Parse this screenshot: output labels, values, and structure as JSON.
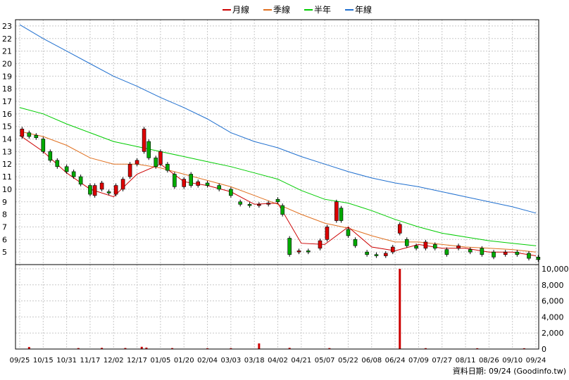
{
  "chart_data": {
    "type": "line",
    "legend": {
      "placement": "top-center",
      "items": [
        {
          "label": "月線",
          "color": "#cc0000"
        },
        {
          "label": "季線",
          "color": "#e07020"
        },
        {
          "label": "半年",
          "color": "#00cc00"
        },
        {
          "label": "年線",
          "color": "#1f6fcf"
        }
      ]
    },
    "price_axis": {
      "min": 4,
      "max": 23.5,
      "ticks": [
        "5",
        "6",
        "7",
        "8",
        "9",
        "10",
        "11",
        "12",
        "13",
        "14",
        "15",
        "16",
        "17",
        "18",
        "19",
        "20",
        "21",
        "22",
        "23"
      ]
    },
    "volume_axis": {
      "min": 0,
      "max": 10000,
      "ticks": [
        "0",
        "2,000",
        "4,000",
        "6,000",
        "8,000",
        "10,000"
      ]
    },
    "x_labels": [
      "09/25",
      "10/15",
      "10/31",
      "11/17",
      "12/02",
      "12/17",
      "01/05",
      "01/20",
      "02/04",
      "03/03",
      "03/18",
      "04/02",
      "04/21",
      "05/07",
      "05/22",
      "06/08",
      "06/24",
      "07/09",
      "07/27",
      "08/11",
      "08/26",
      "09/10",
      "09/24"
    ],
    "grid": true,
    "footer": "資料日期: 09/24  (Goodinfo.tw)",
    "series": [
      {
        "name": "年線",
        "color": "#1f6fcf",
        "x": [
          0,
          1,
          2,
          3,
          4,
          5,
          6,
          7,
          8,
          9,
          10,
          11,
          12,
          13,
          14,
          15,
          16,
          17,
          18,
          19,
          20,
          21,
          22
        ],
        "y": [
          23.1,
          22.0,
          21.0,
          20.0,
          19.0,
          18.2,
          17.3,
          16.5,
          15.6,
          14.5,
          13.8,
          13.3,
          12.6,
          12.0,
          11.4,
          10.9,
          10.5,
          10.2,
          9.8,
          9.4,
          9.0,
          8.6,
          8.1
        ]
      },
      {
        "name": "半年",
        "color": "#00cc00",
        "x": [
          0,
          1,
          2,
          3,
          4,
          5,
          6,
          7,
          8,
          9,
          10,
          11,
          12,
          13,
          14,
          15,
          16,
          17,
          18,
          19,
          20,
          21,
          22
        ],
        "y": [
          16.5,
          16.0,
          15.2,
          14.5,
          13.8,
          13.4,
          13.0,
          12.6,
          12.2,
          11.8,
          11.3,
          10.8,
          9.9,
          9.2,
          8.9,
          8.3,
          7.6,
          7.0,
          6.5,
          6.2,
          5.9,
          5.7,
          5.5
        ]
      },
      {
        "name": "季線",
        "color": "#e07020",
        "x": [
          0,
          1,
          2,
          3,
          4,
          5,
          6,
          7,
          8,
          9,
          10,
          11,
          12,
          13,
          14,
          15,
          16,
          17,
          18,
          19,
          20,
          21,
          22
        ],
        "y": [
          14.6,
          14.2,
          13.5,
          12.5,
          12.0,
          12.0,
          11.7,
          11.2,
          10.7,
          10.2,
          9.5,
          8.8,
          8.0,
          7.3,
          6.9,
          6.3,
          5.8,
          5.8,
          5.6,
          5.4,
          5.3,
          5.2,
          5.0
        ]
      },
      {
        "name": "月線",
        "color": "#cc0000",
        "x": [
          0,
          1,
          2,
          3,
          4,
          5,
          6,
          7,
          8,
          9,
          10,
          11,
          12,
          13,
          14,
          15,
          16,
          17,
          18,
          19,
          20,
          21,
          22
        ],
        "y": [
          14.3,
          13.0,
          11.3,
          10.0,
          9.4,
          11.2,
          12.0,
          10.6,
          10.3,
          9.8,
          8.8,
          8.9,
          5.7,
          5.6,
          7.0,
          5.4,
          5.1,
          5.6,
          5.3,
          5.3,
          5.0,
          5.0,
          4.7
        ]
      }
    ],
    "candles": [
      {
        "x": 0.1,
        "o": 14.2,
        "c": 14.8
      },
      {
        "x": 0.4,
        "o": 14.5,
        "c": 14.2
      },
      {
        "x": 0.7,
        "o": 14.3,
        "c": 14.1
      },
      {
        "x": 1.0,
        "o": 14.0,
        "c": 13.0
      },
      {
        "x": 1.3,
        "o": 13.0,
        "c": 12.3
      },
      {
        "x": 1.6,
        "o": 12.3,
        "c": 11.8
      },
      {
        "x": 2.0,
        "o": 11.8,
        "c": 11.4
      },
      {
        "x": 2.3,
        "o": 11.4,
        "c": 11.0
      },
      {
        "x": 2.6,
        "o": 11.0,
        "c": 10.4
      },
      {
        "x": 3.0,
        "o": 10.3,
        "c": 9.6
      },
      {
        "x": 3.2,
        "o": 9.5,
        "c": 10.3
      },
      {
        "x": 3.5,
        "o": 10.0,
        "c": 10.5
      },
      {
        "x": 3.8,
        "o": 9.8,
        "c": 9.7
      },
      {
        "x": 4.1,
        "o": 9.6,
        "c": 10.3
      },
      {
        "x": 4.4,
        "o": 10.0,
        "c": 10.8
      },
      {
        "x": 4.7,
        "o": 11.0,
        "c": 12.0
      },
      {
        "x": 5.0,
        "o": 12.0,
        "c": 12.3
      },
      {
        "x": 5.3,
        "o": 13.0,
        "c": 14.8
      },
      {
        "x": 5.5,
        "o": 13.8,
        "c": 12.5
      },
      {
        "x": 5.8,
        "o": 12.5,
        "c": 11.8
      },
      {
        "x": 6.0,
        "o": 12.0,
        "c": 13.0
      },
      {
        "x": 6.3,
        "o": 12.0,
        "c": 11.5
      },
      {
        "x": 6.6,
        "o": 11.2,
        "c": 10.2
      },
      {
        "x": 7.0,
        "o": 10.2,
        "c": 10.8
      },
      {
        "x": 7.3,
        "o": 11.2,
        "c": 10.3
      },
      {
        "x": 7.6,
        "o": 10.3,
        "c": 10.6
      },
      {
        "x": 8.0,
        "o": 10.5,
        "c": 10.3
      },
      {
        "x": 8.5,
        "o": 10.3,
        "c": 10.0
      },
      {
        "x": 9.0,
        "o": 10.0,
        "c": 9.5
      },
      {
        "x": 9.4,
        "o": 9.0,
        "c": 8.8
      },
      {
        "x": 9.8,
        "o": 8.8,
        "c": 8.7
      },
      {
        "x": 10.2,
        "o": 8.7,
        "c": 8.8
      },
      {
        "x": 10.6,
        "o": 8.8,
        "c": 8.9
      },
      {
        "x": 11.0,
        "o": 9.2,
        "c": 9.0
      },
      {
        "x": 11.2,
        "o": 8.7,
        "c": 8.0
      },
      {
        "x": 11.5,
        "o": 6.1,
        "c": 4.8
      },
      {
        "x": 11.9,
        "o": 5.0,
        "c": 5.1
      },
      {
        "x": 12.3,
        "o": 5.1,
        "c": 5.0
      },
      {
        "x": 12.8,
        "o": 5.3,
        "c": 5.9
      },
      {
        "x": 13.1,
        "o": 6.0,
        "c": 7.0
      },
      {
        "x": 13.5,
        "o": 7.5,
        "c": 9.0
      },
      {
        "x": 13.7,
        "o": 8.5,
        "c": 7.5
      },
      {
        "x": 14.0,
        "o": 6.8,
        "c": 6.3
      },
      {
        "x": 14.3,
        "o": 6.0,
        "c": 5.5
      },
      {
        "x": 14.8,
        "o": 5.0,
        "c": 4.8
      },
      {
        "x": 15.2,
        "o": 4.8,
        "c": 4.7
      },
      {
        "x": 15.6,
        "o": 4.7,
        "c": 4.9
      },
      {
        "x": 15.9,
        "o": 5.0,
        "c": 5.4
      },
      {
        "x": 16.2,
        "o": 6.5,
        "c": 7.2
      },
      {
        "x": 16.5,
        "o": 6.0,
        "c": 5.5
      },
      {
        "x": 16.9,
        "o": 5.5,
        "c": 5.3
      },
      {
        "x": 17.3,
        "o": 5.3,
        "c": 5.8
      },
      {
        "x": 17.7,
        "o": 5.6,
        "c": 5.3
      },
      {
        "x": 18.2,
        "o": 5.2,
        "c": 4.8
      },
      {
        "x": 18.7,
        "o": 5.3,
        "c": 5.5
      },
      {
        "x": 19.2,
        "o": 5.2,
        "c": 5.0
      },
      {
        "x": 19.7,
        "o": 5.3,
        "c": 4.8
      },
      {
        "x": 20.2,
        "o": 5.0,
        "c": 4.6
      },
      {
        "x": 20.7,
        "o": 4.8,
        "c": 5.0
      },
      {
        "x": 21.2,
        "o": 5.0,
        "c": 4.8
      },
      {
        "x": 21.7,
        "o": 4.9,
        "c": 4.5
      },
      {
        "x": 22.1,
        "o": 4.6,
        "c": 4.4
      }
    ],
    "volume": [
      {
        "x": 0.4,
        "v": 250
      },
      {
        "x": 2.5,
        "v": 120
      },
      {
        "x": 3.5,
        "v": 150
      },
      {
        "x": 4.5,
        "v": 130
      },
      {
        "x": 5.2,
        "v": 280
      },
      {
        "x": 5.4,
        "v": 180
      },
      {
        "x": 6.5,
        "v": 120
      },
      {
        "x": 8.0,
        "v": 100
      },
      {
        "x": 9.0,
        "v": 110
      },
      {
        "x": 10.2,
        "v": 700
      },
      {
        "x": 11.5,
        "v": 150
      },
      {
        "x": 13.2,
        "v": 120
      },
      {
        "x": 16.2,
        "v": 10000
      },
      {
        "x": 17.3,
        "v": 110
      },
      {
        "x": 19.5,
        "v": 100
      },
      {
        "x": 21.5,
        "v": 100
      }
    ]
  }
}
